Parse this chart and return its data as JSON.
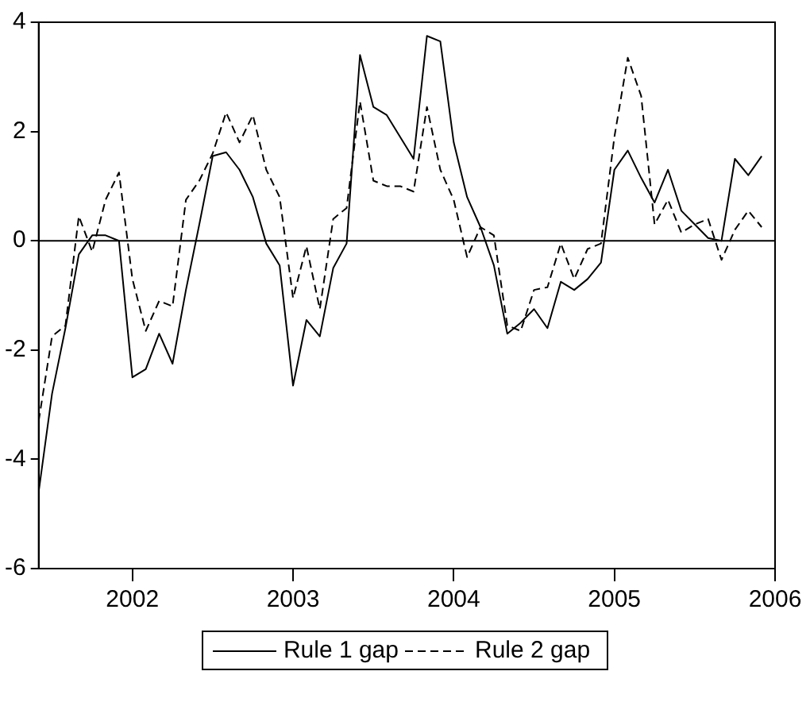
{
  "chart_data": {
    "type": "line",
    "x": [
      "2001-06",
      "2001-07",
      "2001-08",
      "2001-09",
      "2001-10",
      "2001-11",
      "2001-12",
      "2002-01",
      "2002-02",
      "2002-03",
      "2002-04",
      "2002-05",
      "2002-06",
      "2002-07",
      "2002-08",
      "2002-09",
      "2002-10",
      "2002-11",
      "2002-12",
      "2003-01",
      "2003-02",
      "2003-03",
      "2003-04",
      "2003-05",
      "2003-06",
      "2003-07",
      "2003-08",
      "2003-09",
      "2003-10",
      "2003-11",
      "2003-12",
      "2004-01",
      "2004-02",
      "2004-03",
      "2004-04",
      "2004-05",
      "2004-06",
      "2004-07",
      "2004-08",
      "2004-09",
      "2004-10",
      "2004-11",
      "2004-12",
      "2005-01",
      "2005-02",
      "2005-03",
      "2005-04",
      "2005-05",
      "2005-06",
      "2005-07",
      "2005-08",
      "2005-09",
      "2005-10",
      "2005-11",
      "2005-12"
    ],
    "series": [
      {
        "name": "Rule 1 gap",
        "color": "#000000",
        "line_style": "solid",
        "values": [
          -4.6,
          -2.8,
          -1.6,
          -0.25,
          0.1,
          0.1,
          0.0,
          -2.5,
          -2.35,
          -1.7,
          -2.25,
          -0.9,
          0.3,
          1.55,
          1.62,
          1.3,
          0.8,
          -0.05,
          -0.45,
          -2.65,
          -1.45,
          -1.75,
          -0.5,
          -0.05,
          3.4,
          2.45,
          2.3,
          1.9,
          1.5,
          3.75,
          3.65,
          1.8,
          0.8,
          0.25,
          -0.45,
          -1.7,
          -1.5,
          -1.25,
          -1.6,
          -0.75,
          -0.9,
          -0.7,
          -0.4,
          1.3,
          1.65,
          1.15,
          0.7,
          1.3,
          0.55,
          0.3,
          0.05,
          0.0,
          1.5,
          1.2,
          1.55
        ]
      },
      {
        "name": "Rule 2 gap",
        "color": "#000000",
        "line_style": "dashed",
        "values": [
          -3.3,
          -1.75,
          -1.55,
          0.45,
          -0.2,
          0.75,
          1.25,
          -0.7,
          -1.65,
          -1.1,
          -1.2,
          0.75,
          1.1,
          1.6,
          2.35,
          1.8,
          2.3,
          1.3,
          0.8,
          -1.05,
          -0.1,
          -1.25,
          0.4,
          0.6,
          2.55,
          1.1,
          1.0,
          1.0,
          0.9,
          2.45,
          1.3,
          0.75,
          -0.3,
          0.25,
          0.1,
          -1.55,
          -1.65,
          -0.9,
          -0.85,
          -0.05,
          -0.7,
          -0.15,
          -0.05,
          1.9,
          3.35,
          2.65,
          0.3,
          0.75,
          0.15,
          0.3,
          0.4,
          -0.35,
          0.2,
          0.55,
          0.25
        ]
      }
    ],
    "xlim": [
      "2001-06",
      "2006-01"
    ],
    "xticks": [
      {
        "value": "2002-01",
        "label": "2002"
      },
      {
        "value": "2003-01",
        "label": "2003"
      },
      {
        "value": "2004-01",
        "label": "2004"
      },
      {
        "value": "2005-01",
        "label": "2005"
      },
      {
        "value": "2006-01",
        "label": "2006"
      }
    ],
    "ylim": [
      -6,
      4
    ],
    "yticks": [
      -6,
      -4,
      -2,
      0,
      2,
      4
    ],
    "ref_lines": [
      {
        "axis": "y",
        "value": 0,
        "color": "#000000"
      }
    ],
    "grid": false,
    "legend": "bottom",
    "marker": "none"
  }
}
